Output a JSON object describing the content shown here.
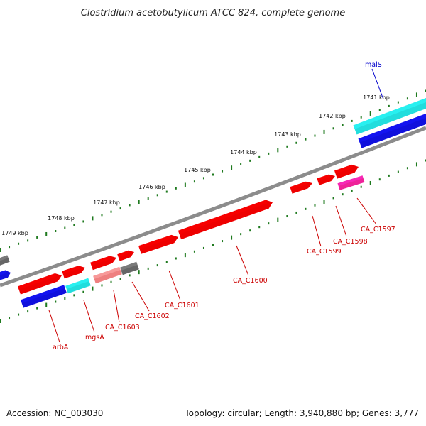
{
  "map": {
    "title": "Clostridium acetobutylicum ATCC 824, complete genome",
    "accession": "Accession: NC_003030",
    "summary": "Topology: circular; Length: 3,940,880 bp; Genes: 3,777"
  },
  "colors": {
    "backbone": "#8c8c8c",
    "tick": "#1f7a1f",
    "red": "#ee0000",
    "blue": "#1010dd",
    "cyan": "#22dddd",
    "gray": "#666666",
    "pink": "#ee8080",
    "magenta": "#ee2299",
    "label_red": "#cc0000",
    "label_blue": "#0000cc"
  },
  "ticks": [
    {
      "label": "1741 kbp"
    },
    {
      "label": "1742 kbp"
    },
    {
      "label": "1743 kbp"
    },
    {
      "label": "1744 kbp"
    },
    {
      "label": "1745 kbp"
    },
    {
      "label": "1746 kbp"
    },
    {
      "label": "1747 kbp"
    },
    {
      "label": "1748 kbp"
    },
    {
      "label": "1749 kbp"
    }
  ],
  "genes": [
    {
      "name": "malS",
      "color": "cyan",
      "strand": "forward"
    },
    {
      "name": "CA_C1597",
      "color": "magenta",
      "strand": "forward"
    },
    {
      "name": "CA_C1598",
      "color": "red",
      "strand": "forward"
    },
    {
      "name": "CA_C1599",
      "color": "red",
      "strand": "forward"
    },
    {
      "name": "CA_C1600",
      "color": "red",
      "strand": "forward"
    },
    {
      "name": "CA_C1601",
      "color": "red",
      "strand": "forward"
    },
    {
      "name": "CA_C1602",
      "color": "gray",
      "strand": "forward"
    },
    {
      "name": "CA_C1603",
      "color": "pink",
      "strand": "forward"
    },
    {
      "name": "mgsA",
      "color": "cyan",
      "strand": "forward"
    },
    {
      "name": "arbA",
      "color": "blue",
      "strand": "forward"
    }
  ]
}
